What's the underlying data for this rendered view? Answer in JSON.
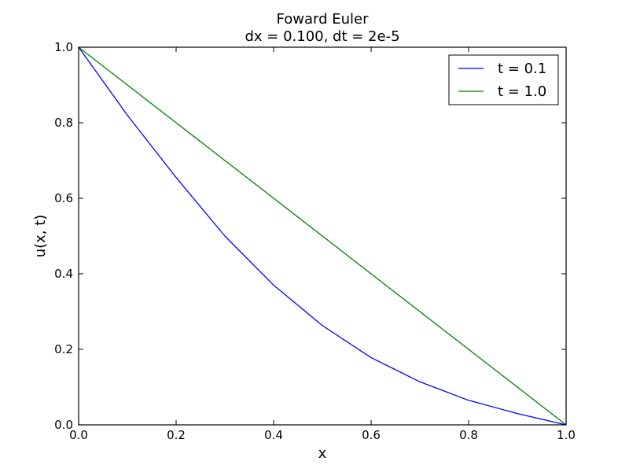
{
  "chart_data": {
    "type": "line",
    "title": "Foward Euler",
    "subtitle": "dx = 0.100, dt = 2e-5",
    "xlabel": "x",
    "ylabel": "u(x, t)",
    "xlim": [
      0.0,
      1.0
    ],
    "ylim": [
      0.0,
      1.0
    ],
    "grid": false,
    "legend_position": "top-right",
    "xticks": [
      "0.0",
      "0.2",
      "0.4",
      "0.6",
      "0.8",
      "1.0"
    ],
    "yticks": [
      "0.0",
      "0.2",
      "0.4",
      "0.6",
      "0.8",
      "1.0"
    ],
    "x": [
      0.0,
      0.1,
      0.2,
      0.3,
      0.4,
      0.5,
      0.6,
      0.7,
      0.8,
      0.9,
      1.0
    ],
    "series": [
      {
        "name": "t = 0.1",
        "color": "#0000ff",
        "values": [
          1.0,
          0.82,
          0.655,
          0.5,
          0.37,
          0.263,
          0.178,
          0.114,
          0.065,
          0.03,
          0.0
        ]
      },
      {
        "name": "t = 1.0",
        "color": "#008000",
        "values": [
          1.0,
          0.9,
          0.8,
          0.7,
          0.6,
          0.5,
          0.4,
          0.3,
          0.2,
          0.1,
          0.0
        ]
      }
    ]
  }
}
